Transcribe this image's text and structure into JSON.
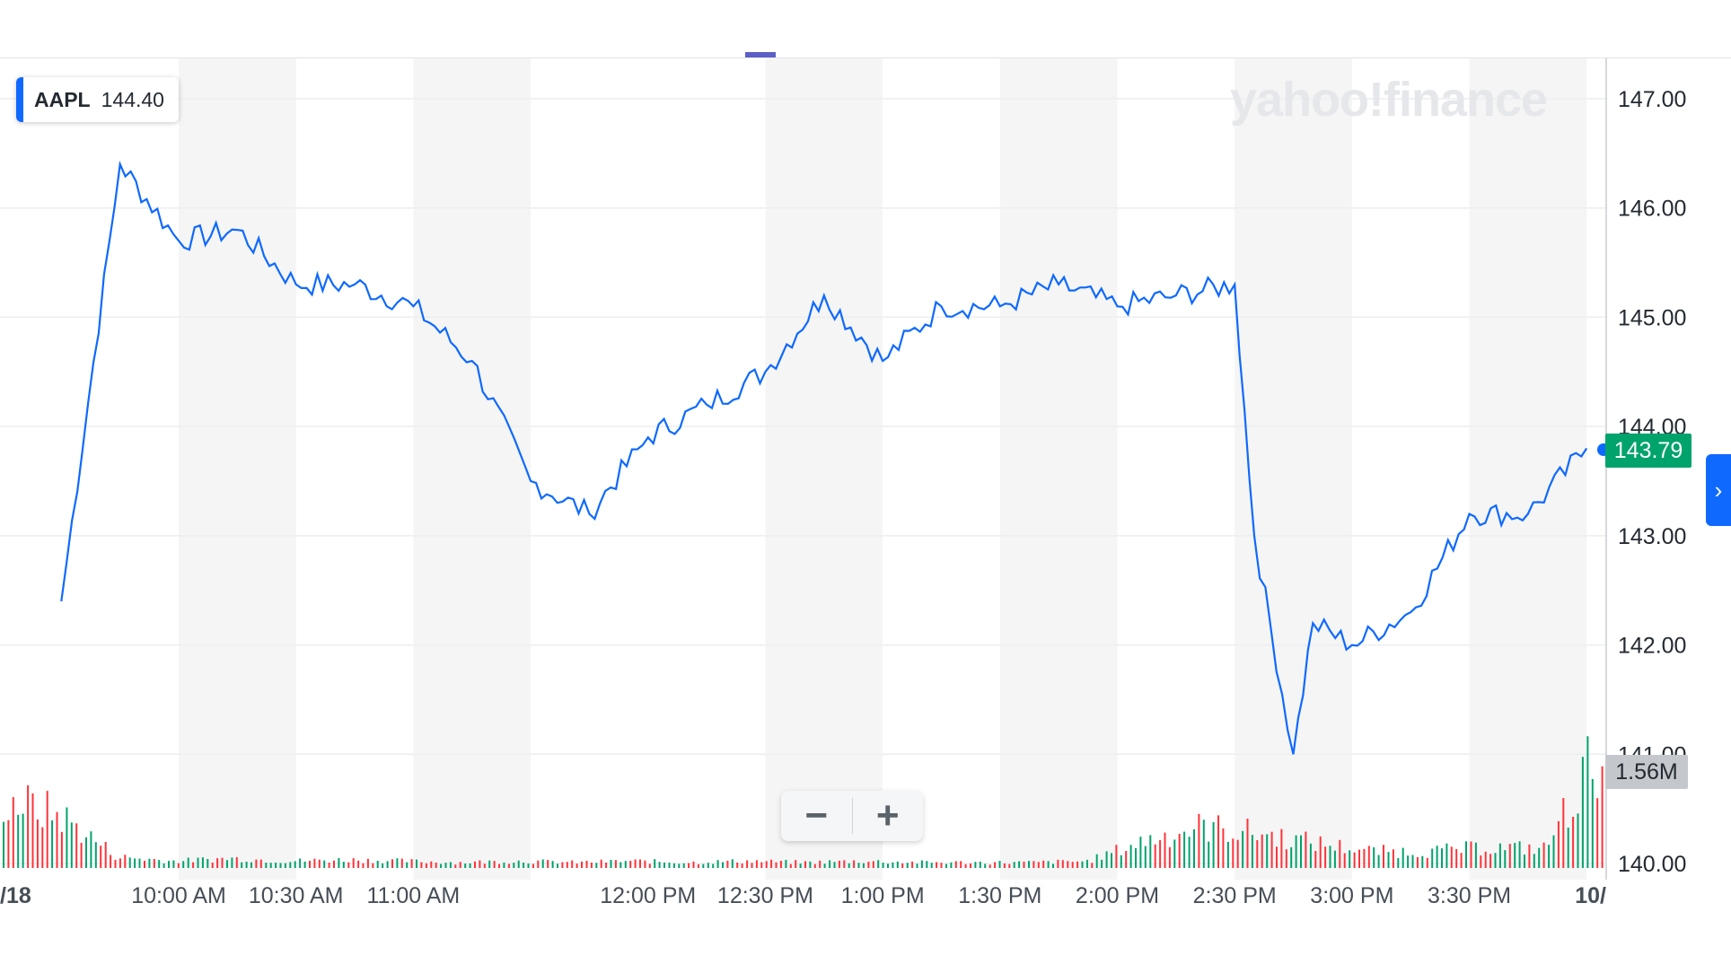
{
  "legend": {
    "symbol": "AAPL",
    "value": "144.40"
  },
  "watermark": "yahoo!finance",
  "price_tag": "143.79",
  "volume_tag": "1.56M",
  "zoom": {
    "minus": "−",
    "plus": "+"
  },
  "side_tab_icon": "chevron-right-icon",
  "colors": {
    "line": "#0f69ff",
    "up": "#00a36c",
    "down": "#ff333a",
    "band": "#f5f5f5"
  },
  "chart_data": {
    "type": "line",
    "x_tick_labels": [
      "/18",
      "10:00 AM",
      "10:30 AM",
      "11:00 AM",
      "12:00 PM",
      "12:30 PM",
      "1:00 PM",
      "1:30 PM",
      "2:00 PM",
      "2:30 PM",
      "3:00 PM",
      "3:30 PM",
      "10/"
    ],
    "y_ticks": [
      "147.00",
      "146.00",
      "145.00",
      "144.00",
      "143.00",
      "142.00",
      "141.00",
      "140.00"
    ],
    "ylim": [
      140,
      147
    ],
    "series": [
      {
        "x": [
          "9:30",
          "9:45",
          "10:00",
          "10:15",
          "10:30",
          "10:45",
          "11:00",
          "11:15",
          "11:30",
          "11:45",
          "12:00",
          "12:15",
          "12:30",
          "12:45",
          "13:00",
          "13:15",
          "13:30",
          "13:45",
          "14:00",
          "14:15",
          "14:30",
          "14:35",
          "14:45",
          "14:50",
          "15:00",
          "15:15",
          "15:30",
          "15:45",
          "16:00"
        ],
        "values": [
          142.4,
          146.4,
          145.7,
          145.8,
          145.3,
          145.3,
          145.1,
          144.6,
          143.5,
          143.2,
          143.9,
          144.2,
          144.5,
          145.2,
          144.6,
          145.1,
          145.1,
          145.3,
          145.1,
          145.2,
          145.3,
          143.0,
          141.0,
          142.2,
          142.0,
          142.3,
          143.2,
          143.2,
          143.8
        ]
      }
    ],
    "volume_levels": [
      0.5,
      0.38,
      0.08,
      0.05,
      0.07,
      0.05,
      0.06,
      0.05,
      0.04,
      0.05,
      0.04,
      0.05,
      0.04,
      0.05,
      0.04,
      0.05,
      0.04,
      0.04,
      0.04,
      0.05,
      0.2,
      0.3,
      0.25,
      0.18,
      0.12,
      0.12,
      0.15,
      0.14,
      0.9
    ],
    "volume_up": [
      true,
      false,
      true,
      false,
      true,
      false,
      false,
      true,
      false,
      true,
      false,
      true,
      false,
      true,
      false,
      true,
      true,
      false,
      false,
      true,
      false,
      false,
      true,
      true,
      false,
      true,
      false,
      true,
      true
    ],
    "grid": true
  }
}
